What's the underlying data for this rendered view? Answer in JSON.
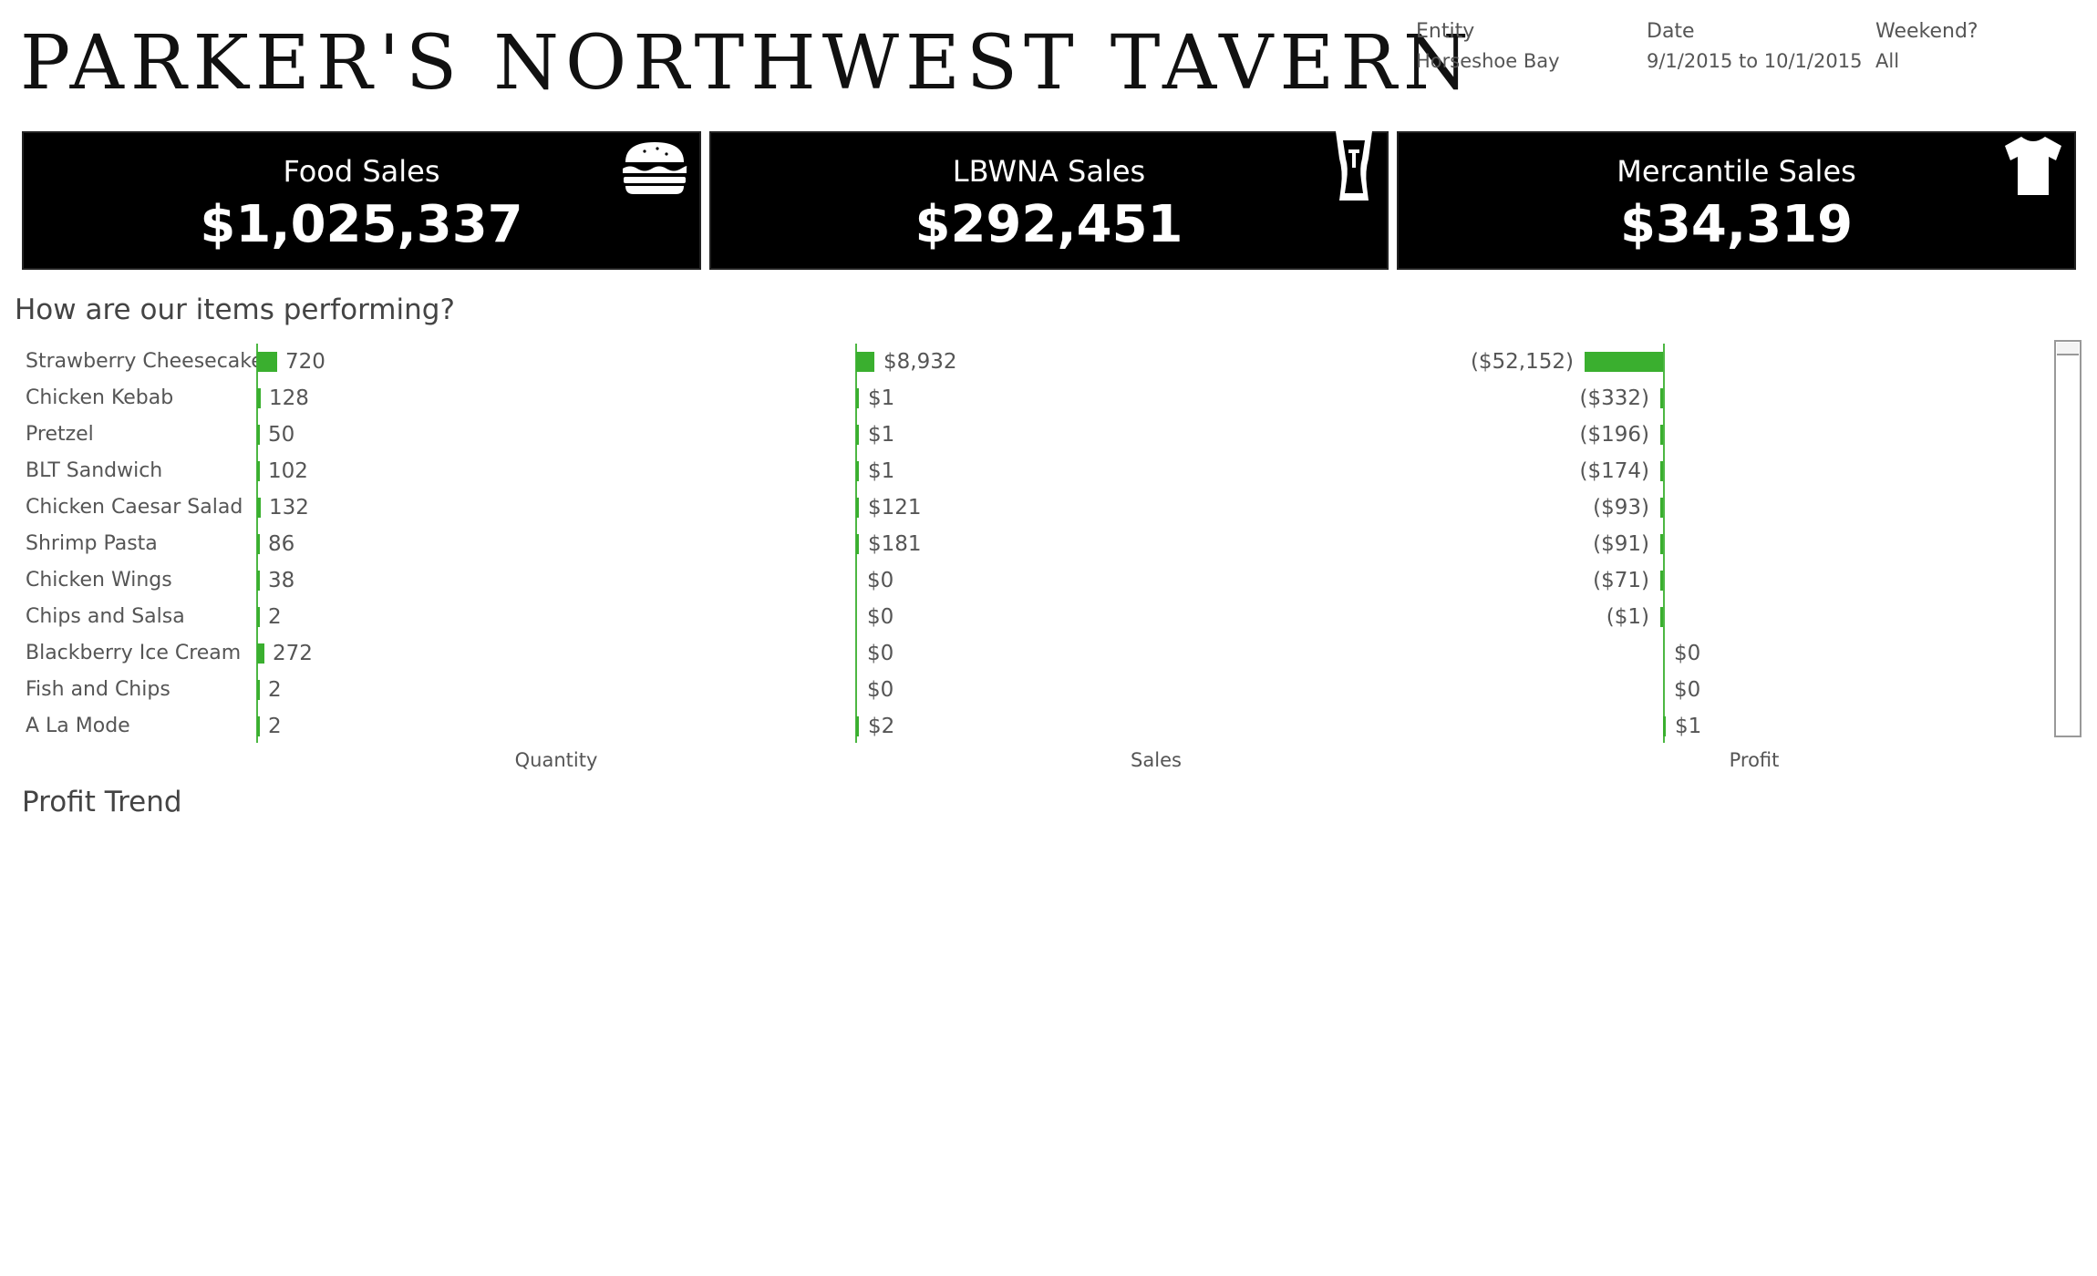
{
  "header": {
    "title": "Parker's Northwest Tavern",
    "filters": [
      {
        "label": "Entity",
        "value": "Horseshoe Bay"
      },
      {
        "label": "Date",
        "value": "9/1/2015 to 10/1/2015"
      },
      {
        "label": "Weekend?",
        "value": "All"
      }
    ]
  },
  "kpis": [
    {
      "label": "Food Sales",
      "value": "$1,025,337",
      "icon": "burger-icon"
    },
    {
      "label": "LBWNA Sales",
      "value": "$292,451",
      "icon": "beer-glass-icon"
    },
    {
      "label": "Mercantile Sales",
      "value": "$34,319",
      "icon": "tshirt-icon"
    }
  ],
  "performance": {
    "title": "How are our items performing?",
    "columns": {
      "quantity": "Quantity",
      "sales": "Sales",
      "profit": "Profit"
    }
  },
  "profit_trend": {
    "title": "Profit Trend"
  },
  "colors": {
    "bar": "#3aaf2f",
    "kpi_bg": "#000000"
  },
  "chart_data": {
    "type": "bar",
    "categories": [
      "Strawberry Cheesecake",
      "Chicken Kebab",
      "Pretzel",
      "BLT Sandwich",
      "Chicken Caesar Salad",
      "Shrimp Pasta",
      "Chicken Wings",
      "Chips and Salsa",
      "Blackberry Ice Cream",
      "Fish and Chips",
      "A La Mode"
    ],
    "series": [
      {
        "name": "Quantity",
        "values": [
          720,
          128,
          50,
          102,
          132,
          86,
          38,
          2,
          272,
          2,
          2
        ],
        "labels": [
          "720",
          "128",
          "50",
          "102",
          "132",
          "86",
          "38",
          "2",
          "272",
          "2",
          "2"
        ]
      },
      {
        "name": "Sales",
        "values": [
          8932,
          1,
          1,
          1,
          121,
          181,
          0,
          0,
          0,
          0,
          2
        ],
        "labels": [
          "$8,932",
          "$1",
          "$1",
          "$1",
          "$121",
          "$181",
          "$0",
          "$0",
          "$0",
          "$0",
          "$2"
        ]
      },
      {
        "name": "Profit",
        "values": [
          -52152,
          -332,
          -196,
          -174,
          -93,
          -91,
          -71,
          -1,
          0,
          0,
          1
        ],
        "labels": [
          "($52,152)",
          "($332)",
          "($196)",
          "($174)",
          "($93)",
          "($91)",
          "($71)",
          "($1)",
          "$0",
          "$0",
          "$1"
        ]
      }
    ]
  }
}
